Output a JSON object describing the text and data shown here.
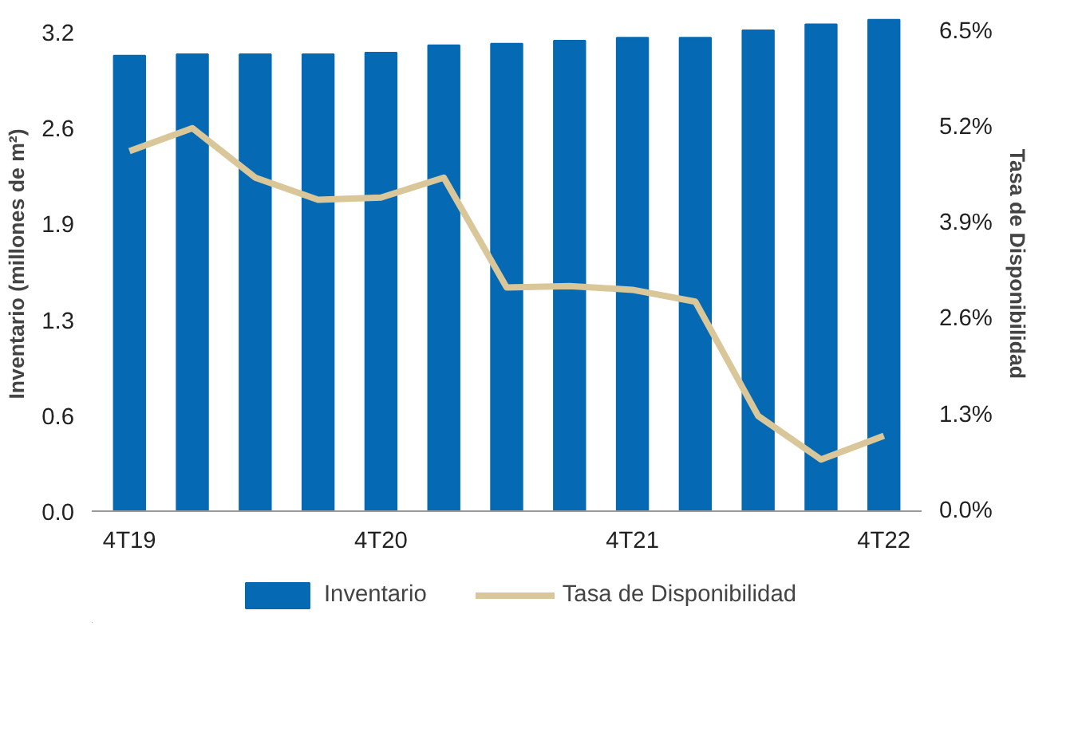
{
  "chart_data": {
    "type": "bar",
    "ylabel": "Inventario (millones de m²)",
    "y2label": "Tasa de Disponibilidad",
    "categories": [
      "4T19",
      null,
      null,
      null,
      "4T20",
      null,
      null,
      null,
      "4T21",
      null,
      null,
      null,
      "4T22"
    ],
    "series": [
      {
        "name": "Inventario",
        "color": "#0569b4",
        "values": [
          3.04,
          3.05,
          3.05,
          3.05,
          3.06,
          3.11,
          3.12,
          3.14,
          3.16,
          3.16,
          3.21,
          3.25,
          3.28
        ]
      },
      {
        "name": "Tasa de Disponibilidad",
        "type": "line",
        "axis": "y2",
        "color": "#d9c79a",
        "values": [
          4.88,
          5.19,
          4.52,
          4.22,
          4.25,
          4.52,
          3.03,
          3.05,
          3.0,
          2.84,
          1.29,
          0.7,
          1.02
        ]
      }
    ],
    "ylim": [
      0,
      3.3
    ],
    "yticks": [
      {
        "value": 0,
        "label": "0.0"
      },
      {
        "value": 0.64,
        "label": "0.6"
      },
      {
        "value": 1.28,
        "label": "1.3"
      },
      {
        "value": 1.92,
        "label": "1.9"
      },
      {
        "value": 2.56,
        "label": "2.6"
      },
      {
        "value": 3.2,
        "label": "3.2"
      }
    ],
    "y2lim": [
      0,
      6.7
    ],
    "y2ticks": [
      {
        "value": 0,
        "label": "0.0%"
      },
      {
        "value": 1.3,
        "label": "1.3%"
      },
      {
        "value": 2.6,
        "label": "2.6%"
      },
      {
        "value": 3.9,
        "label": "3.9%"
      },
      {
        "value": 5.2,
        "label": "5.2%"
      },
      {
        "value": 6.5,
        "label": "6.5%"
      }
    ],
    "grid": false,
    "legend": "bottom",
    "line_style": "solid",
    "marker": "none"
  }
}
